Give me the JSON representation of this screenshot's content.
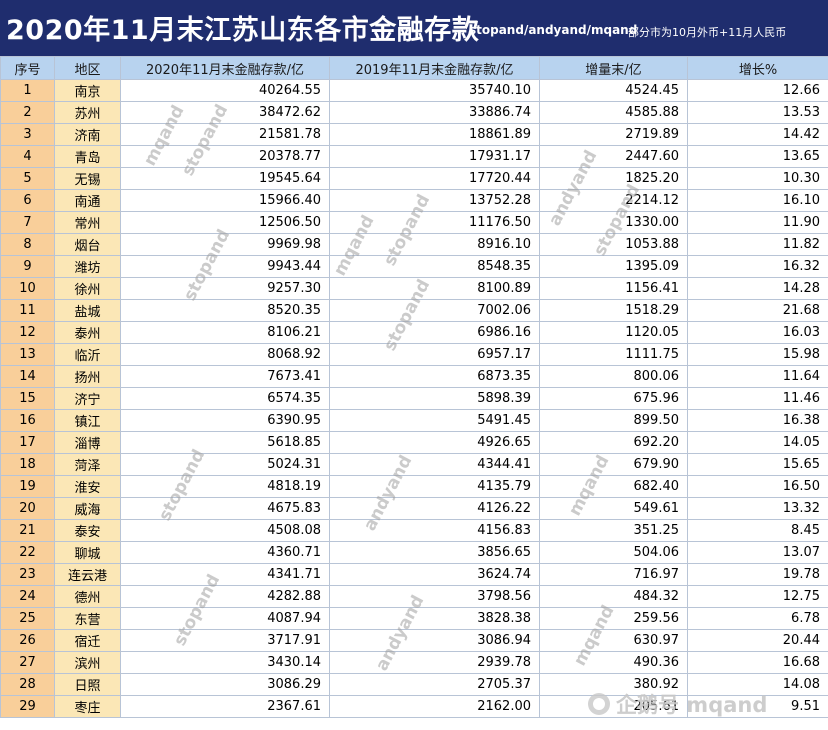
{
  "title": "2020年11月末江苏山东各市金融存款",
  "authors": "stopand/andyand/mqand",
  "note": "部分市为10月外币+11月人民币",
  "headers": [
    "序号",
    "地区",
    "2020年11月末金融存款/亿",
    "2019年11月末金融存款/亿",
    "增量末/亿",
    "增长%"
  ],
  "rows": [
    [
      "1",
      "南京",
      "40264.55",
      "35740.10",
      "4524.45",
      "12.66"
    ],
    [
      "2",
      "苏州",
      "38472.62",
      "33886.74",
      "4585.88",
      "13.53"
    ],
    [
      "3",
      "济南",
      "21581.78",
      "18861.89",
      "2719.89",
      "14.42"
    ],
    [
      "4",
      "青岛",
      "20378.77",
      "17931.17",
      "2447.60",
      "13.65"
    ],
    [
      "5",
      "无锡",
      "19545.64",
      "17720.44",
      "1825.20",
      "10.30"
    ],
    [
      "6",
      "南通",
      "15966.40",
      "13752.28",
      "2214.12",
      "16.10"
    ],
    [
      "7",
      "常州",
      "12506.50",
      "11176.50",
      "1330.00",
      "11.90"
    ],
    [
      "8",
      "烟台",
      "9969.98",
      "8916.10",
      "1053.88",
      "11.82"
    ],
    [
      "9",
      "潍坊",
      "9943.44",
      "8548.35",
      "1395.09",
      "16.32"
    ],
    [
      "10",
      "徐州",
      "9257.30",
      "8100.89",
      "1156.41",
      "14.28"
    ],
    [
      "11",
      "盐城",
      "8520.35",
      "7002.06",
      "1518.29",
      "21.68"
    ],
    [
      "12",
      "泰州",
      "8106.21",
      "6986.16",
      "1120.05",
      "16.03"
    ],
    [
      "13",
      "临沂",
      "8068.92",
      "6957.17",
      "1111.75",
      "15.98"
    ],
    [
      "14",
      "扬州",
      "7673.41",
      "6873.35",
      "800.06",
      "11.64"
    ],
    [
      "15",
      "济宁",
      "6574.35",
      "5898.39",
      "675.96",
      "11.46"
    ],
    [
      "16",
      "镇江",
      "6390.95",
      "5491.45",
      "899.50",
      "16.38"
    ],
    [
      "17",
      "淄博",
      "5618.85",
      "4926.65",
      "692.20",
      "14.05"
    ],
    [
      "18",
      "菏泽",
      "5024.31",
      "4344.41",
      "679.90",
      "15.65"
    ],
    [
      "19",
      "淮安",
      "4818.19",
      "4135.79",
      "682.40",
      "16.50"
    ],
    [
      "20",
      "威海",
      "4675.83",
      "4126.22",
      "549.61",
      "13.32"
    ],
    [
      "21",
      "泰安",
      "4508.08",
      "4156.83",
      "351.25",
      "8.45"
    ],
    [
      "22",
      "聊城",
      "4360.71",
      "3856.65",
      "504.06",
      "13.07"
    ],
    [
      "23",
      "连云港",
      "4341.71",
      "3624.74",
      "716.97",
      "19.78"
    ],
    [
      "24",
      "德州",
      "4282.88",
      "3798.56",
      "484.32",
      "12.75"
    ],
    [
      "25",
      "东营",
      "4087.94",
      "3828.38",
      "259.56",
      "6.78"
    ],
    [
      "26",
      "宿迁",
      "3717.91",
      "3086.94",
      "630.97",
      "20.44"
    ],
    [
      "27",
      "滨州",
      "3430.14",
      "2939.78",
      "490.36",
      "16.68"
    ],
    [
      "28",
      "日照",
      "3086.29",
      "2705.37",
      "380.92",
      "14.08"
    ],
    [
      "29",
      "枣庄",
      "2367.61",
      "2162.00",
      "205.61",
      "9.51"
    ]
  ],
  "watermark_texts": [
    "mqand",
    "stopand",
    "andyand"
  ],
  "brand": "企鹅号 mqand",
  "colors": {
    "title_bg": "#1f2d6e",
    "header_bg": "#b8d3ef",
    "index_bg": "#f9cf9a",
    "region_bg": "#fbe7b6"
  }
}
